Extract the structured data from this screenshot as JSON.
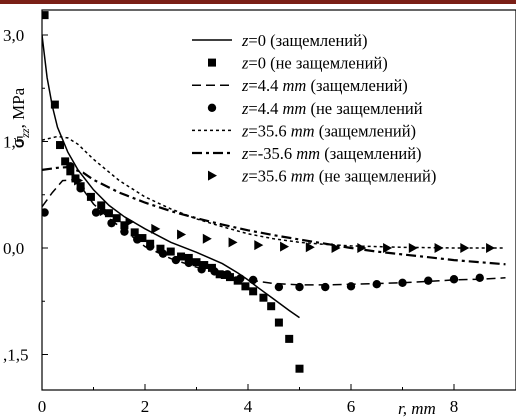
{
  "chart_data": {
    "type": "line",
    "title": "",
    "xlabel": "r, mm",
    "ylabel": "σzz, MPa",
    "xlim": [
      0,
      9
    ],
    "ylim": [
      -1.5,
      3.0
    ],
    "x_ticks": [
      "0",
      "2",
      "4",
      "6",
      "8"
    ],
    "y_ticks": [
      {
        "value": 3.0,
        "label": "3,0"
      },
      {
        "value": 1.5,
        "label": "1,5"
      },
      {
        "value": 0.0,
        "label": "0,0"
      },
      {
        "value": -1.5,
        "label": ",1,5"
      }
    ],
    "legend_position": "top-right",
    "series": [
      {
        "name": "z=0 (защемлений)",
        "style": "solid",
        "marker": "none",
        "x": [
          0.0,
          0.1,
          0.2,
          0.3,
          0.5,
          0.7,
          1.0,
          1.3,
          1.6,
          2.0,
          2.5,
          3.0,
          3.5,
          3.8,
          4.0,
          4.2,
          4.5,
          4.8,
          5.0
        ],
        "y": [
          3.0,
          2.4,
          2.0,
          1.7,
          1.35,
          1.1,
          0.82,
          0.6,
          0.44,
          0.27,
          0.08,
          -0.06,
          -0.22,
          -0.35,
          -0.45,
          -0.56,
          -0.72,
          -0.88,
          -0.98
        ]
      },
      {
        "name": "z=0 (не защемлений)",
        "style": "none",
        "marker": "square",
        "x": [
          0.05,
          0.25,
          0.35,
          0.45,
          0.55,
          0.65,
          0.75,
          0.95,
          1.15,
          1.3,
          1.45,
          1.6,
          1.8,
          1.95,
          2.1,
          2.3,
          2.5,
          2.7,
          2.85,
          3.0,
          3.15,
          3.3,
          3.45,
          3.55,
          3.65,
          3.8,
          3.95,
          4.1,
          4.3,
          4.45,
          4.6,
          4.8,
          5.0
        ],
        "y": [
          3.28,
          2.02,
          1.45,
          1.22,
          1.08,
          0.98,
          0.87,
          0.72,
          0.6,
          0.49,
          0.42,
          0.32,
          0.22,
          0.14,
          0.06,
          -0.01,
          -0.05,
          -0.12,
          -0.14,
          -0.2,
          -0.24,
          -0.28,
          -0.37,
          -0.38,
          -0.41,
          -0.46,
          -0.54,
          -0.61,
          -0.7,
          -0.82,
          -1.05,
          -1.28,
          -1.7
        ]
      },
      {
        "name": "z=4.4 mm (защемлений)",
        "style": "dashed",
        "marker": "none",
        "x": [
          0.0,
          0.2,
          0.4,
          0.6,
          0.8,
          1.0,
          1.3,
          1.6,
          2.0,
          2.5,
          3.0,
          3.5,
          4.0,
          4.5,
          5.0,
          5.5,
          6.0,
          6.5,
          7.0,
          7.5,
          8.0,
          8.5,
          9.0
        ],
        "y": [
          0.58,
          0.78,
          0.95,
          0.96,
          0.82,
          0.62,
          0.42,
          0.25,
          0.02,
          -0.15,
          -0.27,
          -0.36,
          -0.45,
          -0.5,
          -0.52,
          -0.52,
          -0.51,
          -0.5,
          -0.49,
          -0.47,
          -0.45,
          -0.44,
          -0.42
        ]
      },
      {
        "name": "z=4.4 mm (не защемлений",
        "style": "none",
        "marker": "circle",
        "x": [
          0.05,
          0.55,
          0.75,
          1.05,
          1.35,
          1.6,
          1.85,
          2.1,
          2.35,
          2.6,
          2.85,
          3.1,
          3.35,
          3.6,
          3.85,
          4.1,
          4.6,
          5.0,
          5.5,
          6.0,
          6.5,
          7.0,
          7.5,
          8.0,
          8.5
        ],
        "y": [
          0.5,
          1.15,
          0.84,
          0.5,
          0.35,
          0.23,
          0.12,
          0.02,
          -0.08,
          -0.17,
          -0.21,
          -0.3,
          -0.33,
          -0.37,
          -0.43,
          -0.45,
          -0.55,
          -0.55,
          -0.55,
          -0.54,
          -0.51,
          -0.49,
          -0.46,
          -0.44,
          -0.42
        ]
      },
      {
        "name": "z=35.6 mm (защемлений)",
        "style": "dotted",
        "marker": "none",
        "x": [
          0.0,
          0.3,
          0.5,
          0.7,
          1.0,
          1.5,
          2.0,
          2.5,
          3.0,
          3.5,
          4.0,
          4.5,
          5.0,
          5.5,
          6.0,
          6.5,
          7.0,
          8.0,
          9.0
        ],
        "y": [
          1.52,
          1.57,
          1.55,
          1.46,
          1.25,
          0.95,
          0.72,
          0.55,
          0.41,
          0.3,
          0.2,
          0.13,
          0.08,
          0.05,
          0.03,
          0.02,
          0.01,
          0.0,
          0.0
        ]
      },
      {
        "name": "z=-35.6 mm (защемлений)",
        "style": "dashdot",
        "marker": "none",
        "x": [
          0.0,
          0.3,
          0.5,
          0.8,
          1.0,
          1.5,
          2.0,
          2.5,
          3.0,
          3.5,
          4.0,
          4.5,
          5.0,
          5.5,
          6.0,
          6.5,
          7.0,
          7.5,
          8.0,
          8.5,
          9.0
        ],
        "y": [
          1.1,
          1.13,
          1.14,
          1.06,
          0.96,
          0.78,
          0.64,
          0.52,
          0.42,
          0.33,
          0.25,
          0.18,
          0.12,
          0.06,
          0.0,
          -0.05,
          -0.09,
          -0.13,
          -0.17,
          -0.2,
          -0.23
        ]
      },
      {
        "name": "z=35.6 mm (не защемлений)",
        "style": "none",
        "marker": "triangle",
        "x": [
          0.7,
          1.2,
          1.7,
          2.2,
          2.7,
          3.2,
          3.7,
          4.2,
          4.7,
          5.2,
          5.7,
          6.2,
          6.7,
          7.2,
          7.7,
          8.2,
          8.7
        ],
        "y": [
          0.95,
          0.52,
          0.37,
          0.27,
          0.19,
          0.13,
          0.08,
          0.04,
          0.02,
          0.01,
          0.0,
          0.0,
          0.0,
          0.0,
          0.0,
          0.0,
          0.0
        ]
      }
    ]
  }
}
